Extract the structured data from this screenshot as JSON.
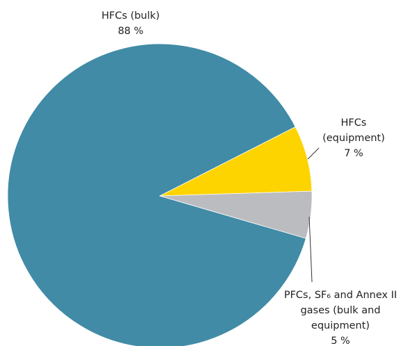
{
  "chart_data": {
    "type": "pie",
    "categories": [
      "HFCs (bulk)",
      "HFCs (equipment)",
      "PFCs, SF₆ and Annex II gases (bulk and equipment)"
    ],
    "values": [
      88,
      7,
      5
    ],
    "value_labels": [
      "88 %",
      "7 %",
      "5 %"
    ],
    "colors": [
      "#418ba6",
      "#fed400",
      "#bbbcbf"
    ]
  }
}
